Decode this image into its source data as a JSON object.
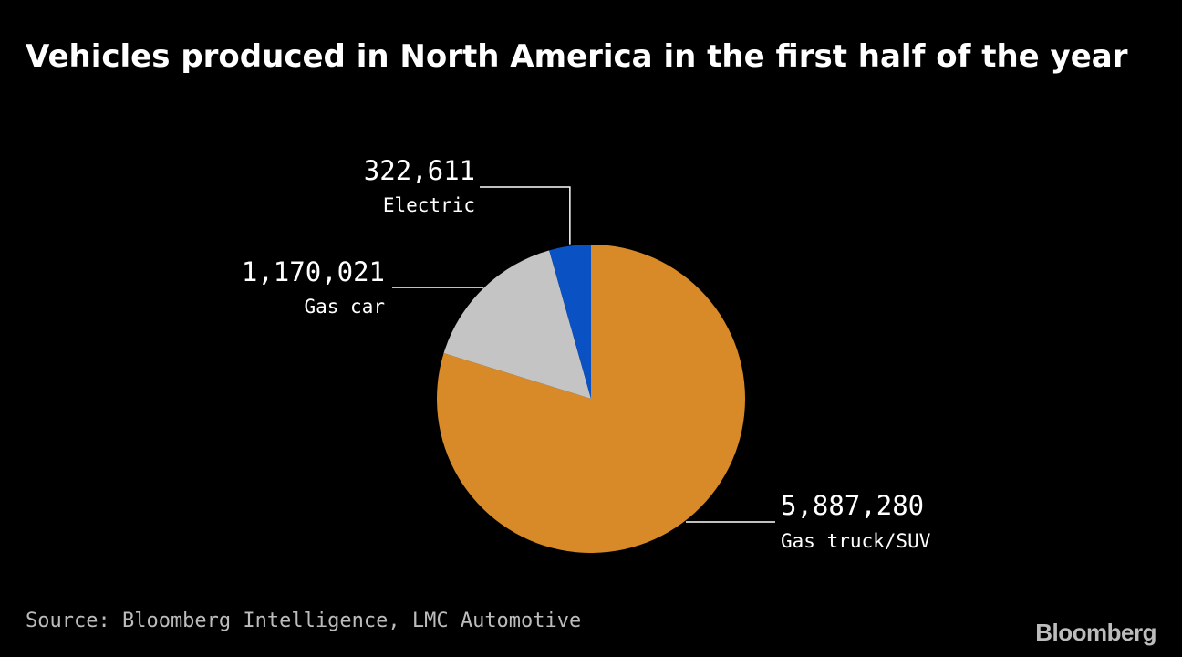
{
  "chart_data": {
    "type": "pie",
    "title": "Vehicles produced in North America in the first half of the year",
    "slices": [
      {
        "label": "Gas truck/SUV",
        "value": 5887280,
        "display": "5,887,280",
        "color": "#d98a28"
      },
      {
        "label": "Gas car",
        "value": 1170021,
        "display": "1,170,021",
        "color": "#c4c4c4"
      },
      {
        "label": "Electric",
        "value": 322611,
        "display": "322,611",
        "color": "#0a52c4"
      }
    ],
    "start_angle": "12 o'clock",
    "direction": "clockwise",
    "legend": "none",
    "source": "Source: Bloomberg Intelligence, LMC Automotive"
  },
  "brand": "Bloomberg"
}
